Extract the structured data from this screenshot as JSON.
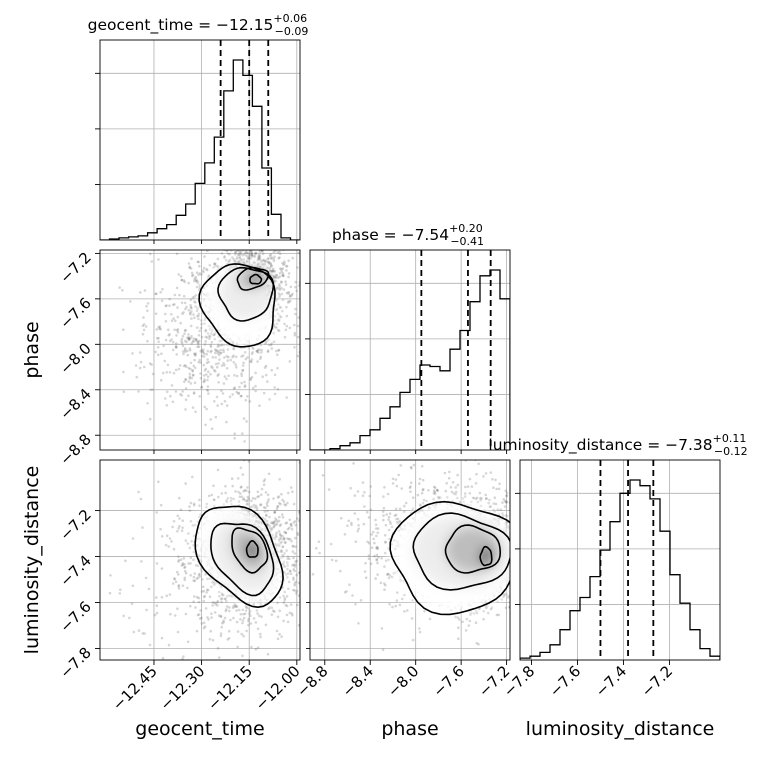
{
  "chart_data": {
    "type": "corner",
    "parameters": [
      "geocent_time",
      "phase",
      "luminosity_distance"
    ],
    "axis_labels": {
      "geocent_time": "geocent_time",
      "phase": "phase",
      "luminosity_distance": "luminosity_distance"
    },
    "titles": [
      {
        "param": "geocent_time",
        "prefix": "geocent_time = −12.15",
        "plus": "+0.06",
        "minus": "−0.09",
        "median": -12.15,
        "upper_err": 0.06,
        "lower_err": 0.09
      },
      {
        "param": "phase",
        "prefix": "phase = −7.54",
        "plus": "+0.20",
        "minus": "−0.41",
        "median": -7.54,
        "upper_err": 0.2,
        "lower_err": 0.41
      },
      {
        "param": "luminosity_distance",
        "prefix": "luminosity_distance = −7.38",
        "plus": "+0.11",
        "minus": "−0.12",
        "median": -7.38,
        "upper_err": 0.11,
        "lower_err": 0.12
      }
    ],
    "ranges": {
      "geocent_time": [
        -12.62,
        -11.99
      ],
      "phase": [
        -8.93,
        -7.17
      ],
      "luminosity_distance": [
        -7.85,
        -6.98
      ]
    },
    "ticks": {
      "geocent_time": {
        "values": [
          -12.45,
          -12.3,
          -12.15,
          -12.0
        ],
        "labels": [
          "−12.45",
          "−12.30",
          "−12.15",
          "−12.00"
        ]
      },
      "phase": {
        "values": [
          -8.8,
          -8.4,
          -8.0,
          -7.6,
          -7.2
        ],
        "labels": [
          "−8.8",
          "−8.4",
          "−8.0",
          "−7.6",
          "−7.2"
        ]
      },
      "luminosity_distance": {
        "values": [
          -7.8,
          -7.6,
          -7.4,
          -7.2
        ],
        "labels": [
          "−7.8",
          "−7.6",
          "−7.4",
          "−7.2"
        ]
      }
    },
    "histograms": {
      "geocent_time": {
        "bin_lo": -12.62,
        "bin_width": 0.03,
        "counts": [
          0,
          1,
          2,
          3,
          4,
          7,
          11,
          15,
          24,
          35,
          55,
          75,
          100,
          145,
          175,
          160,
          130,
          70,
          25,
          2,
          0
        ]
      },
      "phase": {
        "bin_lo": -8.93,
        "bin_width": 0.088,
        "counts": [
          0,
          0,
          1,
          3,
          5,
          10,
          14,
          22,
          30,
          40,
          49,
          59,
          58,
          55,
          70,
          83,
          103,
          121,
          125,
          105,
          0
        ]
      },
      "luminosity_distance": {
        "bin_lo": -7.85,
        "bin_width": 0.0435,
        "counts": [
          1,
          2,
          4,
          8,
          16,
          26,
          33,
          44,
          58,
          73,
          88,
          95,
          92,
          85,
          68,
          45,
          30,
          16,
          6,
          2
        ]
      }
    },
    "quantiles": {
      "geocent_time": [
        -12.24,
        -12.15,
        -12.09
      ],
      "phase": [
        -7.95,
        -7.54,
        -7.34
      ],
      "luminosity_distance": [
        -7.5,
        -7.38,
        -7.27
      ]
    },
    "grid": true,
    "colors": {
      "histogram": "#000000",
      "contour": "#000000",
      "points": "#6a6a6a",
      "grid": "#b0b0b0"
    }
  }
}
